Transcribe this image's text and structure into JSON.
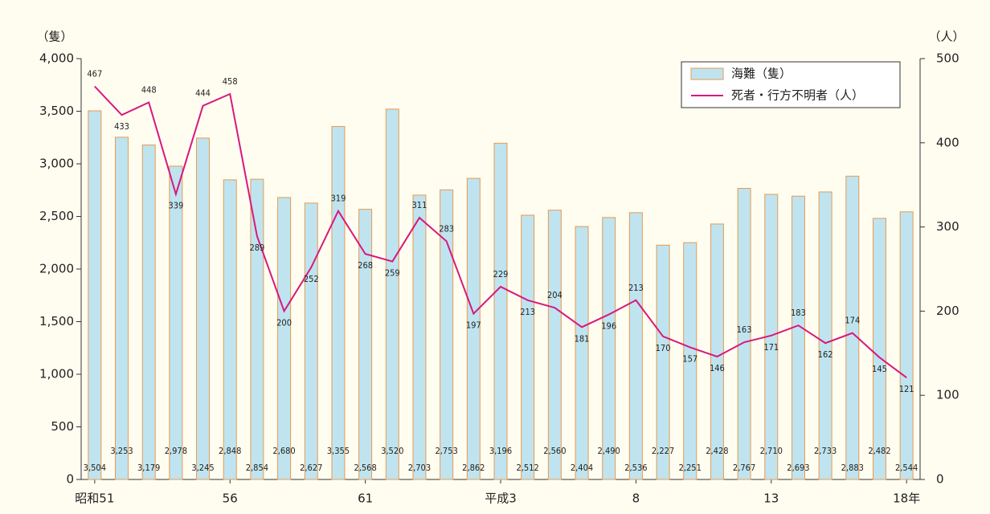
{
  "chart_data": {
    "type": "bar",
    "ylabel": "（隻）",
    "y2label": "（人）",
    "categories": [
      "昭和51",
      null,
      null,
      null,
      null,
      "56",
      null,
      null,
      null,
      null,
      "61",
      null,
      null,
      null,
      null,
      "平成3",
      null,
      null,
      null,
      null,
      "8",
      null,
      null,
      null,
      null,
      "13",
      null,
      null,
      null,
      null,
      "18年"
    ],
    "series": [
      {
        "name": "海難（隻）",
        "type": "bar",
        "color": "#bfe4ef",
        "edgecolor": "#e79a52",
        "values": [
          3504,
          3253,
          3179,
          2978,
          3245,
          2848,
          2854,
          2680,
          2627,
          3355,
          2568,
          3520,
          2703,
          2753,
          2862,
          3196,
          2512,
          2560,
          2404,
          2490,
          2536,
          2227,
          2251,
          2428,
          2767,
          2710,
          2693,
          2733,
          2883,
          2482,
          2544
        ],
        "value_labels": [
          "3,504",
          "3,253",
          "3,179",
          "2,978",
          "3,245",
          "2,848",
          "2,854",
          "2,680",
          "2,627",
          "3,355",
          "2,568",
          "3,520",
          "2,703",
          "2,753",
          "2,862",
          "3,196",
          "2,512",
          "2,560",
          "2,404",
          "2,490",
          "2,536",
          "2,227",
          "2,251",
          "2,428",
          "2,767",
          "2,710",
          "2,693",
          "2,733",
          "2,883",
          "2,482",
          "2,544"
        ]
      },
      {
        "name": "死者・行方不明者（人）",
        "type": "line",
        "axis": "y2",
        "color": "#d8187f",
        "values": [
          467,
          433,
          448,
          339,
          444,
          458,
          289,
          200,
          252,
          319,
          268,
          259,
          311,
          283,
          197,
          229,
          213,
          204,
          181,
          196,
          213,
          170,
          157,
          146,
          163,
          171,
          183,
          162,
          174,
          145,
          121
        ]
      }
    ],
    "ylim": [
      0,
      4000
    ],
    "yticks": [
      0,
      500,
      {
        "value": 1000,
        "label": "1,000"
      },
      {
        "value": 1500,
        "label": "1,500"
      },
      {
        "value": 2000,
        "label": "2,000"
      },
      {
        "value": 2500,
        "label": "2,500"
      },
      {
        "value": 3000,
        "label": "3,000"
      },
      {
        "value": 3500,
        "label": "3,500"
      },
      {
        "value": 4000,
        "label": "4,000"
      }
    ],
    "y2lim": [
      0,
      500
    ],
    "y2ticks": [
      0,
      100,
      200,
      300,
      400,
      500
    ],
    "legend": "upper right"
  }
}
